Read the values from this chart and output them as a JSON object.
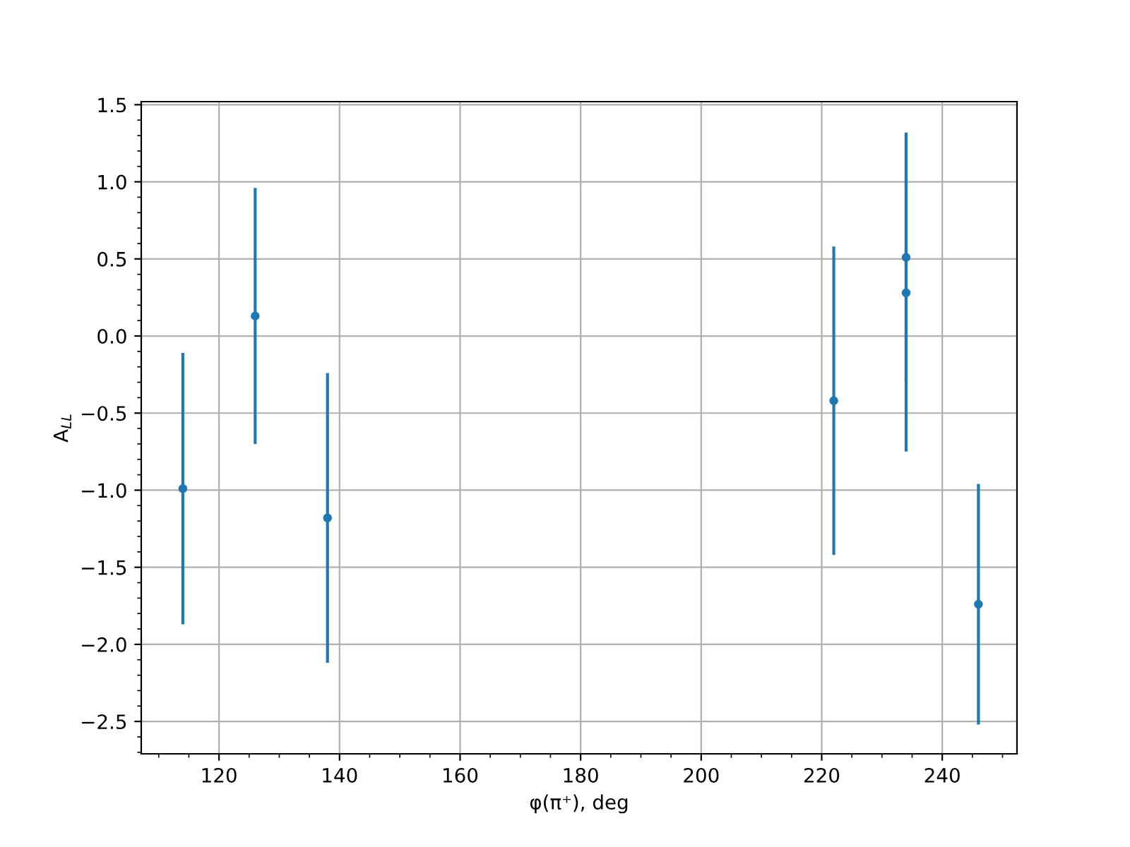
{
  "chart_data": {
    "type": "scatter",
    "xlabel": "φ(π⁺), deg",
    "ylabel": "A$_{LL}$",
    "x": [
      114,
      126,
      138,
      222,
      234,
      234,
      246
    ],
    "values": [
      -0.99,
      0.13,
      -1.18,
      -0.42,
      0.51,
      0.28,
      -1.74
    ],
    "errors": [
      0.88,
      0.83,
      0.94,
      1.0,
      0.81,
      1.03,
      0.78
    ],
    "color": "#1f77b4",
    "marker": "circle",
    "grid": true,
    "xlim": [
      107.1,
      252.4
    ],
    "ylim": [
      -2.71,
      1.52
    ],
    "xticks": [
      120,
      140,
      160,
      180,
      200,
      220,
      240
    ],
    "yticks": [
      {
        "value": -2.5,
        "label": "−2.5"
      },
      {
        "value": -2,
        "label": "−2.0"
      },
      {
        "value": -1.5,
        "label": "−1.5"
      },
      {
        "value": -1,
        "label": "−1.0"
      },
      {
        "value": -0.5,
        "label": "−0.5"
      },
      {
        "value": 0,
        "label": "0.0"
      },
      0.5,
      {
        "value": 1,
        "label": "1.0"
      },
      1.5
    ]
  }
}
